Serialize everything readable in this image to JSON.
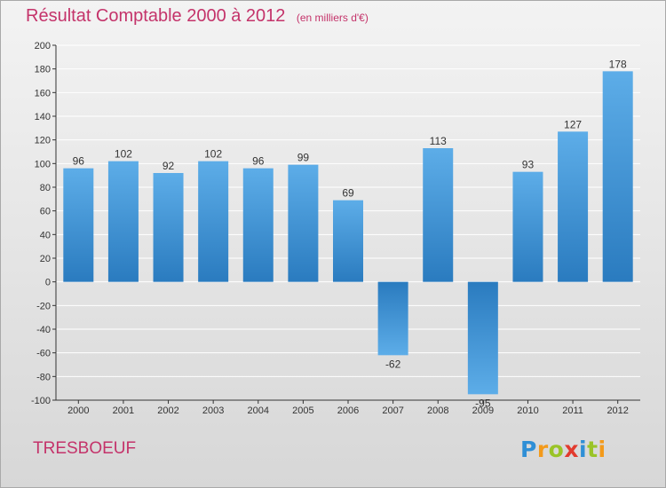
{
  "title": "Résultat Comptable 2000 à 2012",
  "subtitle": "(en milliers d'€)",
  "commune": "TRESBOEUF",
  "logo_text": "Proxiti",
  "colors": {
    "title": "#c4336a",
    "bar_light": "#5dade8",
    "bar_dark": "#2a7bbf",
    "grid": "#ffffff",
    "axis": "#333333"
  },
  "chart_data": {
    "type": "bar",
    "categories": [
      "2000",
      "2001",
      "2002",
      "2003",
      "2004",
      "2005",
      "2006",
      "2007",
      "2008",
      "2009",
      "2010",
      "2011",
      "2012"
    ],
    "values": [
      96,
      102,
      92,
      102,
      96,
      99,
      69,
      -62,
      113,
      -95,
      93,
      127,
      178
    ],
    "data_labels": [
      "96",
      "102",
      "92",
      "102",
      "96",
      "99",
      "69",
      "-62",
      "113",
      "-95",
      "93",
      "127",
      "178"
    ],
    "yticks": [
      200,
      180,
      160,
      140,
      120,
      100,
      80,
      60,
      40,
      20,
      0,
      -20,
      -40,
      -60,
      -80,
      -100
    ],
    "ylim": [
      -100,
      200
    ],
    "grid": true,
    "legend": "none",
    "xlabel": "",
    "ylabel": ""
  }
}
